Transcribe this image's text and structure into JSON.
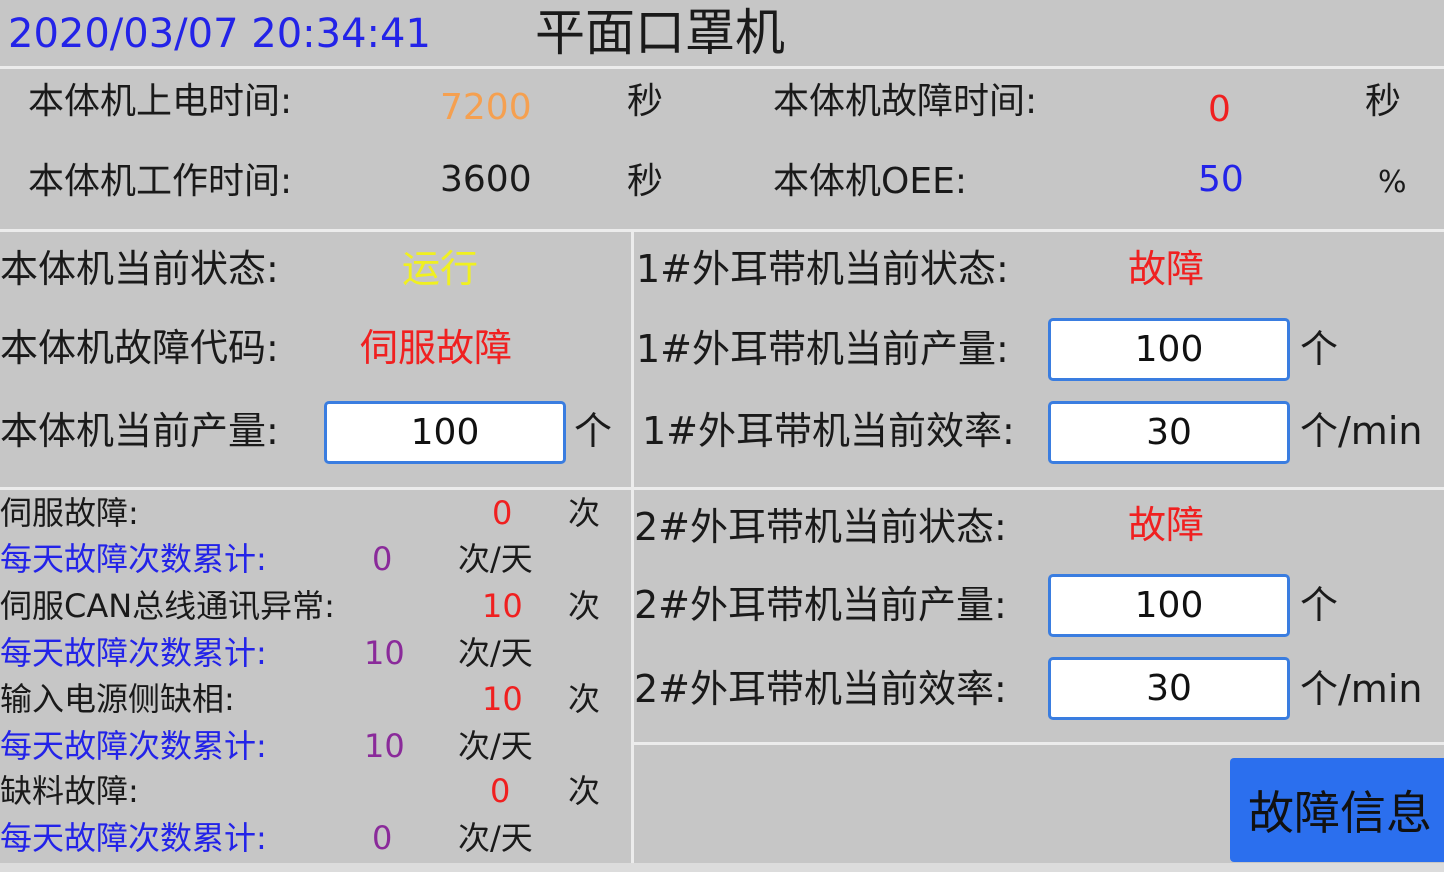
{
  "header": {
    "datetime": "2020/03/07 20:34:41",
    "title": "平面口罩机"
  },
  "summary": {
    "power_on_label": "本体机上电时间:",
    "power_on_value": "7200",
    "power_on_unit": "秒",
    "fault_time_label": "本体机故障时间:",
    "fault_time_value": "0",
    "fault_time_unit": "秒",
    "work_time_label": "本体机工作时间:",
    "work_time_value": "3600",
    "work_time_unit": "秒",
    "oee_label": "本体机OEE:",
    "oee_value": "50",
    "oee_unit": "%"
  },
  "main": {
    "state_label": "本体机当前状态:",
    "state_value": "运行",
    "fault_code_label": "本体机故障代码:",
    "fault_code_value": "伺服故障",
    "output_label": "本体机当前产量:",
    "output_value": "100",
    "output_unit": "个"
  },
  "ear1": {
    "state_label": "1#外耳带机当前状态:",
    "state_value": "故障",
    "output_label": "1#外耳带机当前产量:",
    "output_value": "100",
    "output_unit": "个",
    "eff_label": "1#外耳带机当前效率:",
    "eff_value": "30",
    "eff_unit": "个/min"
  },
  "ear2": {
    "state_label": "2#外耳带机当前状态:",
    "state_value": "故障",
    "output_label": "2#外耳带机当前产量:",
    "output_value": "100",
    "output_unit": "个",
    "eff_label": "2#外耳带机当前效率:",
    "eff_value": "30",
    "eff_unit": "个/min"
  },
  "faults": [
    {
      "label": "伺服故障:",
      "count": "0",
      "unit": "次",
      "daily_label": "每天故障次数累计:",
      "daily": "0",
      "daily_unit": "次/天"
    },
    {
      "label": "伺服CAN总线通讯异常:",
      "count": "10",
      "unit": "次",
      "daily_label": "每天故障次数累计:",
      "daily": "10",
      "daily_unit": "次/天"
    },
    {
      "label": "输入电源侧缺相:",
      "count": "10",
      "unit": "次",
      "daily_label": "每天故障次数累计:",
      "daily": "10",
      "daily_unit": "次/天"
    },
    {
      "label": "缺料故障:",
      "count": "0",
      "unit": "次",
      "daily_label": "每天故障次数累计:",
      "daily": "0",
      "daily_unit": "次/天"
    }
  ],
  "fault_info_button": "故障信息",
  "colors": {
    "date": "#2323e8",
    "power_on": "#f5a050",
    "fault": "#f02020",
    "oee": "#2323e8",
    "running": "#f0f020",
    "button": "#2b6fee"
  }
}
